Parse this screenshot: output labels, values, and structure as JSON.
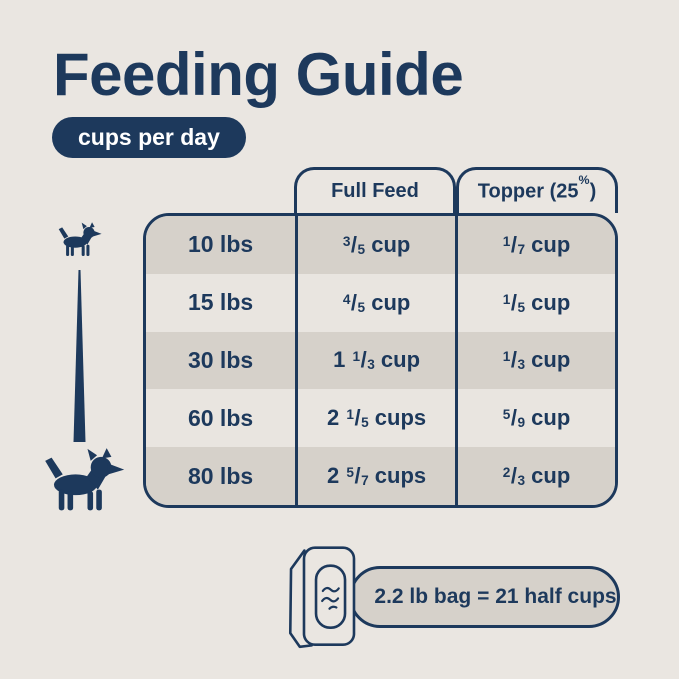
{
  "page": {
    "title": "Feeding Guide",
    "badge": "cups per day"
  },
  "chart_data": {
    "type": "table",
    "title": "Feeding Guide",
    "subtitle": "cups per day",
    "columns": [
      "Full Feed",
      "Topper (25%)"
    ],
    "rows": [
      {
        "weight": "10 lbs",
        "full_feed": "3/5 cup",
        "topper": "1/7 cup"
      },
      {
        "weight": "15 lbs",
        "full_feed": "4/5 cup",
        "topper": "1/5 cup"
      },
      {
        "weight": "30 lbs",
        "full_feed": "1 1/3 cup",
        "topper": "1/3 cup"
      },
      {
        "weight": "60 lbs",
        "full_feed": "2 1/5 cups",
        "topper": "5/9 cup"
      },
      {
        "weight": "80 lbs",
        "full_feed": "2 5/7 cups",
        "topper": "2/3 cup"
      }
    ],
    "note": "2.2 lb bag = 21 half cups",
    "grid": false,
    "legend_position": "none"
  },
  "icons": {
    "small_dog": "small-dog-silhouette",
    "large_dog": "large-dog-silhouette",
    "size_gradient": "tapered-line-small-to-large",
    "bag": "dog-food-bag-outline"
  },
  "colors": {
    "background": "#eae6e1",
    "navy": "#1d395c",
    "row_dark": "#d6d1ca",
    "row_light": "#e9e5e0",
    "badge_text": "#ffffff"
  }
}
